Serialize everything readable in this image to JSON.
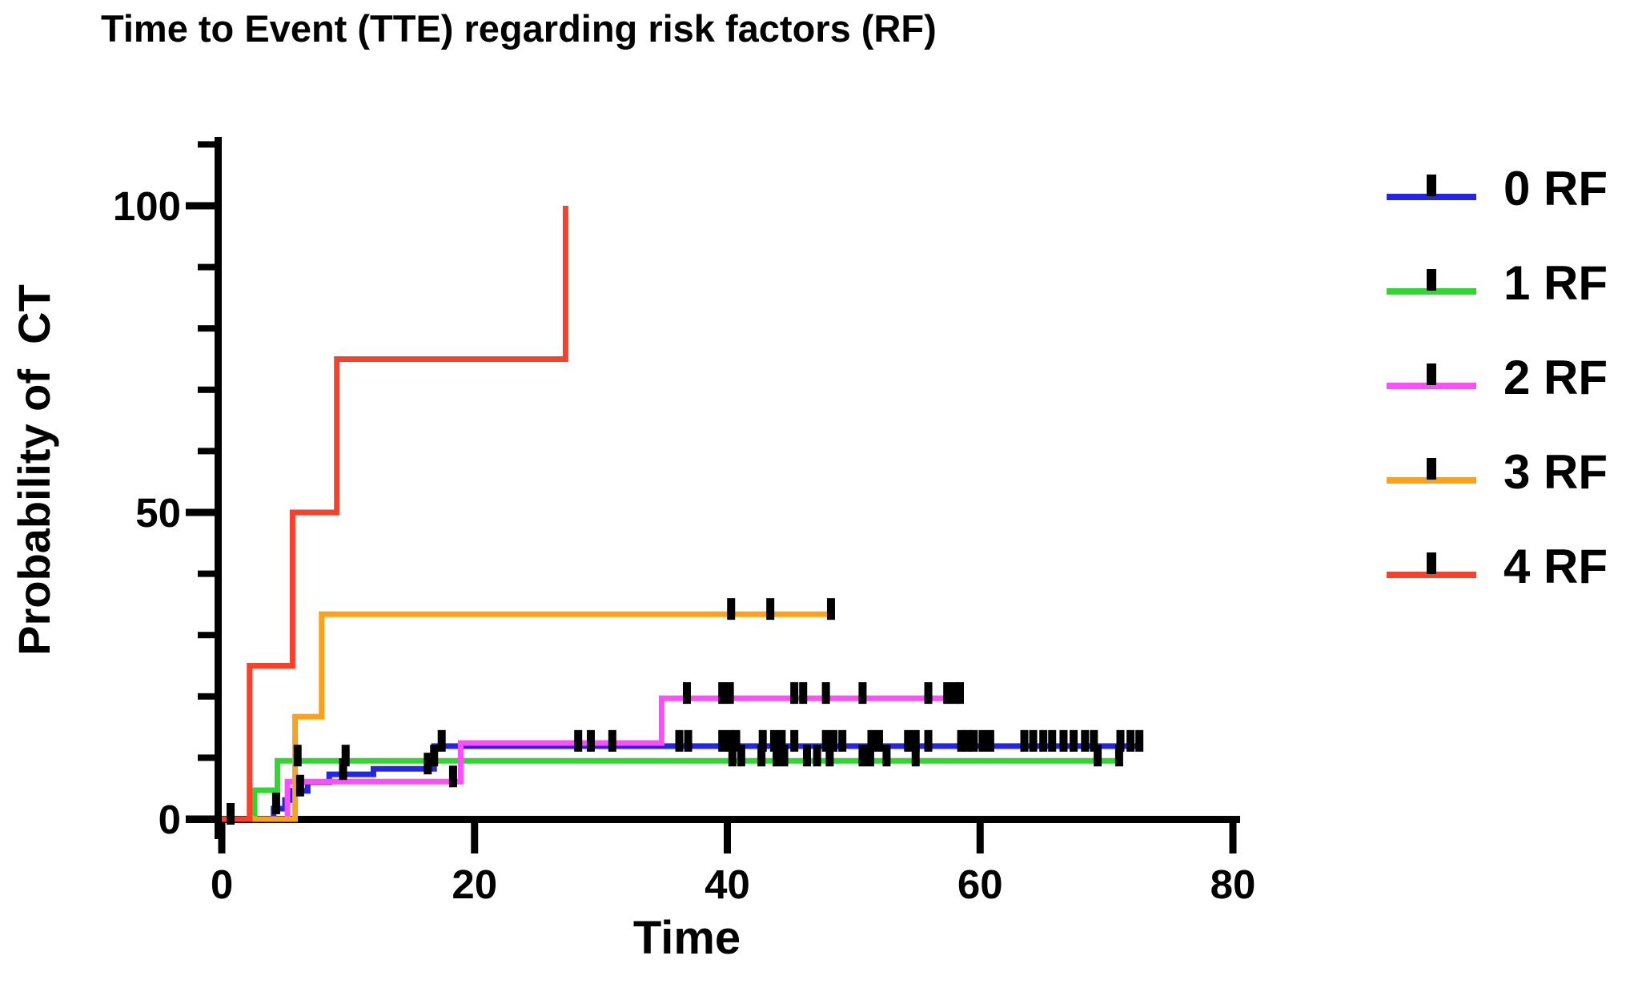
{
  "title": "Time to Event (TTE) regarding risk factors (RF)",
  "chart_data": {
    "type": "line",
    "subtype": "kaplan-meier-step-curve",
    "title": "Time to Event (TTE) regarding risk factors (RF)",
    "xlabel": "Time",
    "ylabel": "Probability of  CT",
    "xlim": [
      0,
      80
    ],
    "ylim": [
      0,
      110
    ],
    "x_ticks": [
      0,
      20,
      40,
      60,
      80
    ],
    "y_ticks_major": [
      0,
      50,
      100
    ],
    "y_ticks_minor": [
      10,
      20,
      30,
      40,
      60,
      70,
      80,
      90,
      110
    ],
    "grid": false,
    "legend_position": "right",
    "axis_color": "#000000",
    "censor_mark_color": "#000000",
    "series": [
      {
        "name": "0 RF",
        "color": "#2525e8",
        "start": [
          0,
          0
        ],
        "steps": [
          [
            4.1,
            1.7
          ],
          [
            5.0,
            3.1
          ],
          [
            5.5,
            4.6
          ],
          [
            6.8,
            6.0
          ],
          [
            8.5,
            7.3
          ],
          [
            12.0,
            8.2
          ],
          [
            16.8,
            11.9
          ]
        ],
        "end_t": 72.9,
        "censor_marks": [
          [
            0.7,
            0
          ],
          [
            4.3,
            1.7
          ],
          [
            6.2,
            4.6
          ],
          [
            9.6,
            7.3
          ],
          [
            16.3,
            8.2
          ],
          [
            17.4,
            11.9
          ],
          [
            28.2,
            11.9
          ],
          [
            29.2,
            11.9
          ],
          [
            30.9,
            11.9
          ],
          [
            36.2,
            11.9
          ],
          [
            36.9,
            11.9
          ],
          [
            39.6,
            11.9
          ],
          [
            40.2,
            11.9
          ],
          [
            40.7,
            11.9
          ],
          [
            42.8,
            11.9
          ],
          [
            43.7,
            11.9
          ],
          [
            44.3,
            11.9
          ],
          [
            45.3,
            11.9
          ],
          [
            47.8,
            11.9
          ],
          [
            48.4,
            11.9
          ],
          [
            49.1,
            11.9
          ],
          [
            51.4,
            11.9
          ],
          [
            52.0,
            11.9
          ],
          [
            54.3,
            11.9
          ],
          [
            54.9,
            11.9
          ],
          [
            55.9,
            11.9
          ],
          [
            58.5,
            11.9
          ],
          [
            59.0,
            11.9
          ],
          [
            59.5,
            11.9
          ],
          [
            60.2,
            11.9
          ],
          [
            60.8,
            11.9
          ],
          [
            63.5,
            11.9
          ],
          [
            64.2,
            11.9
          ],
          [
            65.0,
            11.9
          ],
          [
            65.7,
            11.9
          ],
          [
            66.6,
            11.9
          ],
          [
            67.4,
            11.9
          ],
          [
            68.3,
            11.9
          ],
          [
            69.0,
            11.9
          ],
          [
            71.1,
            11.9
          ],
          [
            71.9,
            11.9
          ],
          [
            72.6,
            11.9
          ]
        ]
      },
      {
        "name": "1 RF",
        "color": "#2cd92c",
        "start": [
          0,
          0
        ],
        "steps": [
          [
            2.6,
            4.7
          ],
          [
            4.4,
            9.5
          ]
        ],
        "end_t": 71.2,
        "censor_marks": [
          [
            6.0,
            9.5
          ],
          [
            9.8,
            9.5
          ],
          [
            16.8,
            9.5
          ],
          [
            40.4,
            9.5
          ],
          [
            41.1,
            9.5
          ],
          [
            42.7,
            9.5
          ],
          [
            43.9,
            9.5
          ],
          [
            44.5,
            9.5
          ],
          [
            46.3,
            9.5
          ],
          [
            47.1,
            9.5
          ],
          [
            48.1,
            9.5
          ],
          [
            50.7,
            9.5
          ],
          [
            51.3,
            9.5
          ],
          [
            52.6,
            9.5
          ],
          [
            54.9,
            9.5
          ],
          [
            69.3,
            9.5
          ],
          [
            71.0,
            9.5
          ]
        ]
      },
      {
        "name": "2 RF",
        "color": "#fc4efc",
        "start": [
          0,
          0
        ],
        "steps": [
          [
            5.2,
            6.1
          ],
          [
            18.9,
            12.4
          ],
          [
            34.8,
            19.7
          ]
        ],
        "end_t": 58.6,
        "censor_marks": [
          [
            18.3,
            6.1
          ],
          [
            36.8,
            19.7
          ],
          [
            39.6,
            19.7
          ],
          [
            40.2,
            19.7
          ],
          [
            45.3,
            19.7
          ],
          [
            46.0,
            19.7
          ],
          [
            47.8,
            19.7
          ],
          [
            50.7,
            19.7
          ],
          [
            55.9,
            19.7
          ],
          [
            57.4,
            19.7
          ],
          [
            58.0,
            19.7
          ],
          [
            58.4,
            19.7
          ]
        ]
      },
      {
        "name": "3 RF",
        "color": "#faa21d",
        "start": [
          0,
          0
        ],
        "steps": [
          [
            5.8,
            16.7
          ],
          [
            7.9,
            33.4
          ]
        ],
        "end_t": 48.3,
        "censor_marks": [
          [
            40.3,
            33.4
          ],
          [
            43.4,
            33.4
          ],
          [
            48.2,
            33.4
          ]
        ]
      },
      {
        "name": "4 RF",
        "color": "#f8402b",
        "start": [
          0,
          0
        ],
        "steps": [
          [
            2.2,
            25
          ],
          [
            5.6,
            50
          ],
          [
            9.1,
            75
          ],
          [
            27.2,
            100
          ]
        ],
        "end_t": 27.2,
        "censor_marks": []
      }
    ]
  }
}
